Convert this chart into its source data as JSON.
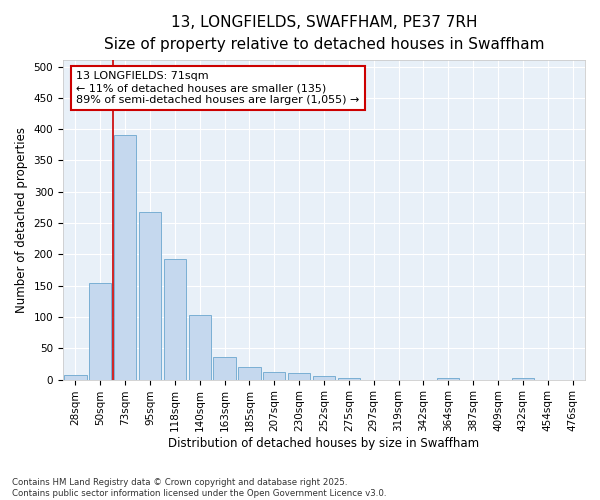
{
  "title1": "13, LONGFIELDS, SWAFFHAM, PE37 7RH",
  "title2": "Size of property relative to detached houses in Swaffham",
  "xlabel": "Distribution of detached houses by size in Swaffham",
  "ylabel": "Number of detached properties",
  "categories": [
    "28sqm",
    "50sqm",
    "73sqm",
    "95sqm",
    "118sqm",
    "140sqm",
    "163sqm",
    "185sqm",
    "207sqm",
    "230sqm",
    "252sqm",
    "275sqm",
    "297sqm",
    "319sqm",
    "342sqm",
    "364sqm",
    "387sqm",
    "409sqm",
    "432sqm",
    "454sqm",
    "476sqm"
  ],
  "values": [
    7,
    155,
    390,
    268,
    193,
    103,
    36,
    20,
    12,
    10,
    5,
    2,
    0,
    0,
    0,
    3,
    0,
    0,
    3,
    0,
    0
  ],
  "bar_color": "#c5d8ee",
  "bar_edge_color": "#7aafd4",
  "vline_x": 1.5,
  "vline_color": "#cc0000",
  "annotation_text": "13 LONGFIELDS: 71sqm\n← 11% of detached houses are smaller (135)\n89% of semi-detached houses are larger (1,055) →",
  "annotation_box_color": "#cc0000",
  "ylim": [
    0,
    510
  ],
  "yticks": [
    0,
    50,
    100,
    150,
    200,
    250,
    300,
    350,
    400,
    450,
    500
  ],
  "bg_color": "#ffffff",
  "plot_bg_color": "#e8f0f8",
  "grid_color": "#ffffff",
  "footnote": "Contains HM Land Registry data © Crown copyright and database right 2025.\nContains public sector information licensed under the Open Government Licence v3.0.",
  "title_fontsize": 11,
  "subtitle_fontsize": 9.5,
  "axis_label_fontsize": 8.5,
  "tick_fontsize": 7.5,
  "annot_fontsize": 8
}
